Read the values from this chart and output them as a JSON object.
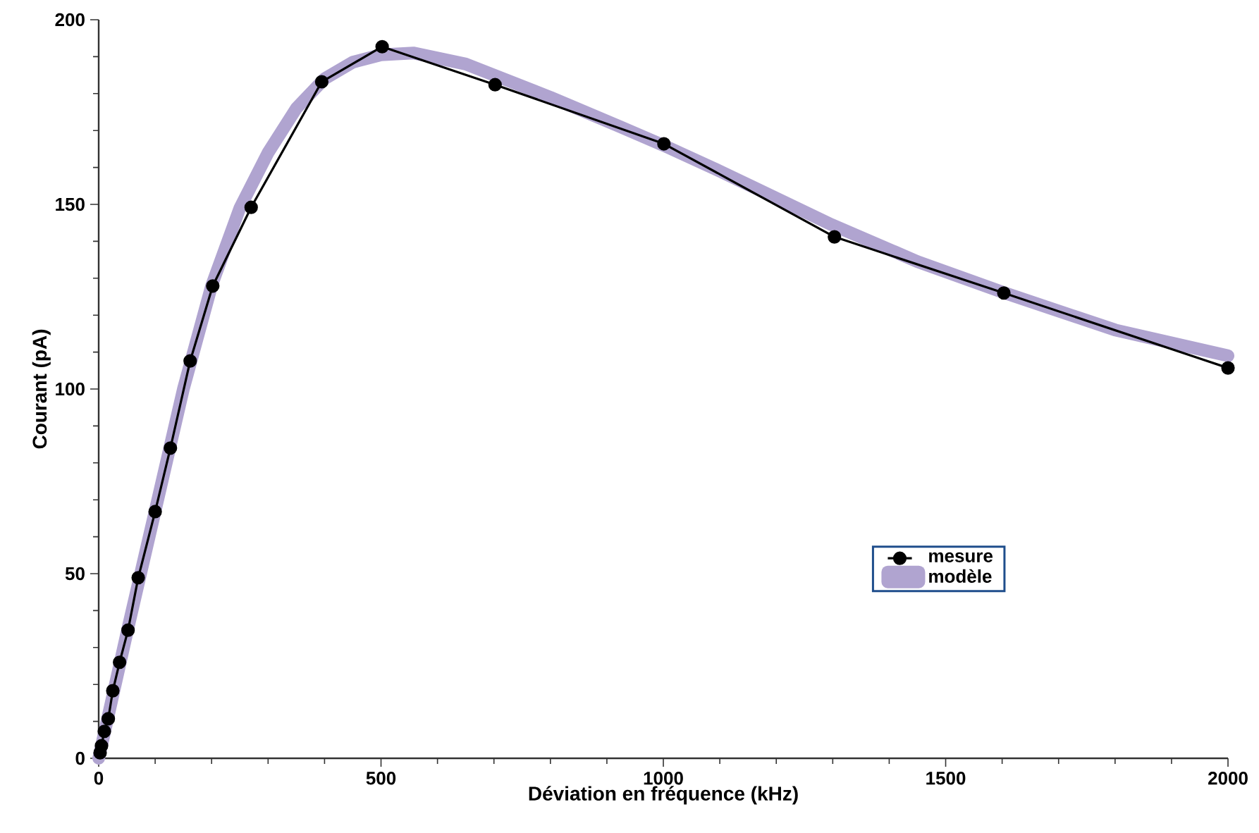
{
  "chart_data": {
    "type": "line",
    "xlabel": "Déviation en fréquence (kHz)",
    "ylabel": "Courant (pA)",
    "xlim": [
      0,
      2000
    ],
    "ylim": [
      0,
      200
    ],
    "xticks": [
      0,
      500,
      1000,
      1500,
      2000
    ],
    "yticks": [
      0,
      50,
      100,
      150,
      200
    ],
    "grid": false,
    "legend": "bottom right",
    "series": [
      {
        "name": "modèle",
        "color": "#b0a4d0",
        "marker": "none",
        "line_style": "solid",
        "x": [
          0,
          25,
          50,
          100,
          150,
          200,
          250,
          300,
          350,
          400,
          450,
          500,
          557,
          650,
          800,
          924,
          1000,
          1100,
          1298,
          1450,
          1605,
          1800,
          2000
        ],
        "values": [
          0,
          17,
          34,
          67,
          100,
          128,
          149,
          164,
          176,
          184,
          188.5,
          190.5,
          191,
          188,
          179,
          171,
          166,
          159,
          144.5,
          134.5,
          126,
          116,
          109
        ]
      },
      {
        "name": "mesure",
        "color": "#000000",
        "marker": "circle",
        "line_style": "solid",
        "x": [
          2.5,
          5,
          10,
          17,
          25,
          37,
          52,
          70,
          100,
          127,
          162,
          202,
          270,
          395,
          502,
          702,
          1001,
          1303,
          1603,
          2000
        ],
        "values": [
          1.5,
          3.4,
          7.3,
          10.7,
          18.3,
          26,
          34.7,
          48.9,
          66.8,
          84,
          107.6,
          127.9,
          149.2,
          183.2,
          192.7,
          182.4,
          166.4,
          141.2,
          126,
          105.7
        ]
      }
    ]
  }
}
